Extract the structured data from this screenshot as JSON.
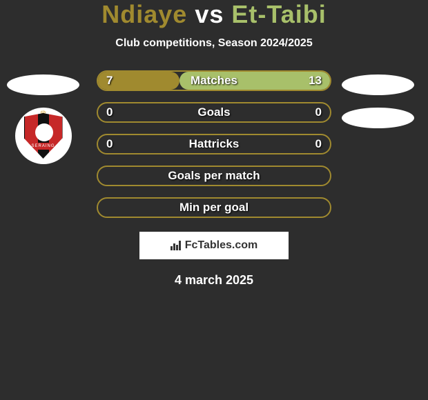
{
  "title": {
    "player1": "Ndiaye",
    "vs": "vs",
    "player2": "Et-Taibi",
    "player1_color": "#a08a2f",
    "player2_color": "#a8c06a"
  },
  "subtitle": "Club competitions, Season 2024/2025",
  "bars": [
    {
      "label": "Matches",
      "left": "7",
      "right": "13",
      "left_pct": 35,
      "right_pct": 65
    },
    {
      "label": "Goals",
      "left": "0",
      "right": "0",
      "left_pct": 0,
      "right_pct": 0
    },
    {
      "label": "Hattricks",
      "left": "0",
      "right": "0",
      "left_pct": 0,
      "right_pct": 0
    },
    {
      "label": "Goals per match",
      "left": "",
      "right": "",
      "left_pct": 0,
      "right_pct": 0
    },
    {
      "label": "Min per goal",
      "left": "",
      "right": "",
      "left_pct": 0,
      "right_pct": 0
    }
  ],
  "bar_style": {
    "border_color": "#a08a2f",
    "fill_left": "#a08a2f",
    "fill_right": "#a8c06a"
  },
  "club_badge": {
    "text": "SERAING"
  },
  "attribution": "FcTables.com",
  "date": "4 march 2025"
}
